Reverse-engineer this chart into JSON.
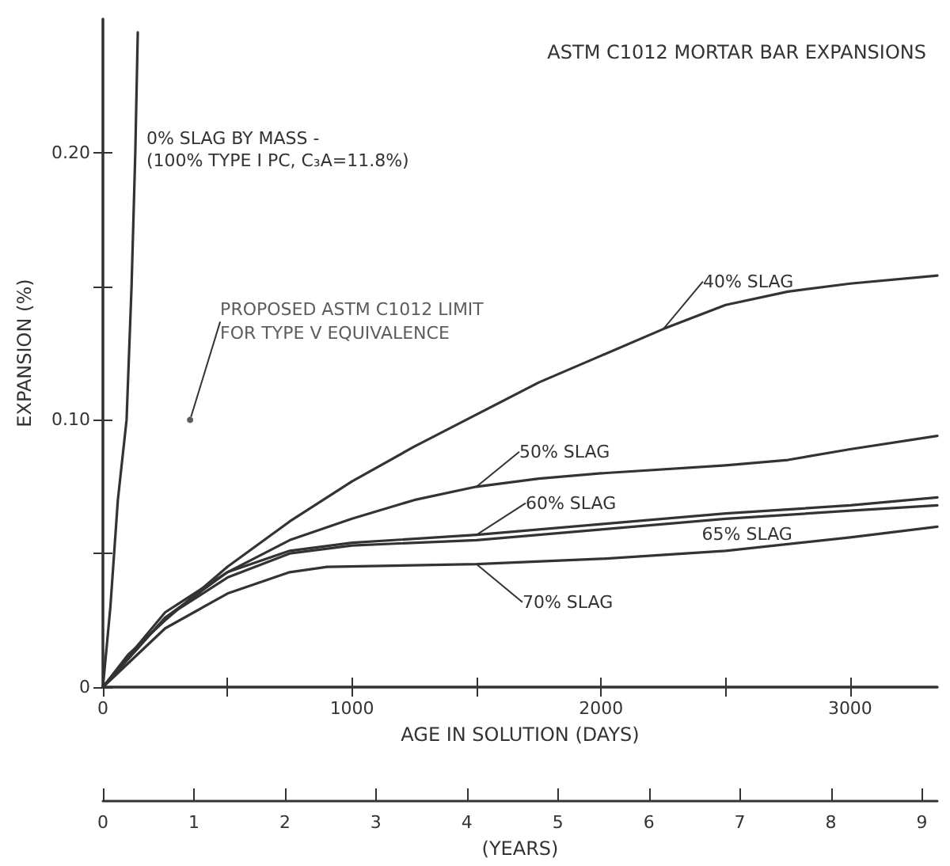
{
  "chart_data": {
    "type": "line",
    "title": "ASTM C1012 MORTAR BAR EXPANSIONS",
    "xlabel": "AGE IN SOLUTION (DAYS)",
    "ylabel": "EXPANSION (%)",
    "x2label": "(YEARS)",
    "xlim": [
      0,
      3350
    ],
    "xticks": [
      0,
      {
        "value": 500,
        "label": null
      },
      1000,
      {
        "value": 1500,
        "label": null
      },
      2000,
      {
        "value": 2500,
        "label": null
      },
      3000
    ],
    "ylim": [
      0,
      0.25
    ],
    "yticks": [
      0,
      {
        "value": 0.05,
        "label": null
      },
      {
        "value": 0.1,
        "label": "0.10"
      },
      {
        "value": 0.15,
        "label": null
      },
      {
        "value": 0.2,
        "label": "0.20"
      }
    ],
    "x2lim": [
      0,
      9.17
    ],
    "x2ticks": [
      0,
      1,
      2,
      3,
      4,
      5,
      6,
      7,
      8,
      9
    ],
    "grid": false,
    "legend": false,
    "marker": "none",
    "line_style": "solid",
    "annotations": [
      {
        "text": "PROPOSED ASTM C1012 LIMIT\nFOR TYPE V EQUIVALENCE",
        "x": 350,
        "y": 0.1
      }
    ],
    "series": [
      {
        "name": "0% SLAG BY MASS -\n(100% TYPE I PC, C₃A=11.8%)",
        "color": "#333333",
        "x": [
          0,
          30,
          60,
          95,
          115,
          130,
          140
        ],
        "values": [
          0,
          0.03,
          0.07,
          0.1,
          0.15,
          0.2,
          0.245
        ]
      },
      {
        "name": "40% SLAG",
        "color": "#333333",
        "x": [
          0,
          100,
          250,
          500,
          750,
          1000,
          1250,
          1500,
          1750,
          2000,
          2250,
          2500,
          2750,
          3000,
          3350
        ],
        "values": [
          0,
          0.012,
          0.025,
          0.045,
          0.062,
          0.077,
          0.09,
          0.102,
          0.114,
          0.124,
          0.134,
          0.143,
          0.148,
          0.151,
          0.154
        ]
      },
      {
        "name": "50% SLAG",
        "color": "#333333",
        "x": [
          0,
          250,
          500,
          750,
          1000,
          1250,
          1500,
          1750,
          2000,
          2500,
          2750,
          3000,
          3350
        ],
        "values": [
          0,
          0.026,
          0.043,
          0.055,
          0.063,
          0.07,
          0.075,
          0.078,
          0.08,
          0.083,
          0.085,
          0.089,
          0.094
        ]
      },
      {
        "name": "60% SLAG",
        "color": "#333333",
        "x": [
          0,
          250,
          500,
          750,
          1000,
          1500,
          2000,
          2500,
          3000,
          3350
        ],
        "values": [
          0,
          0.028,
          0.043,
          0.051,
          0.054,
          0.057,
          0.061,
          0.065,
          0.068,
          0.071
        ]
      },
      {
        "name": "65% SLAG",
        "color": "#333333",
        "x": [
          0,
          250,
          500,
          750,
          1000,
          1500,
          2000,
          2500,
          3000,
          3350
        ],
        "values": [
          0,
          0.026,
          0.041,
          0.05,
          0.053,
          0.055,
          0.059,
          0.063,
          0.066,
          0.068
        ]
      },
      {
        "name": "70% SLAG",
        "color": "#333333",
        "x": [
          0,
          250,
          500,
          750,
          900,
          1500,
          2000,
          2500,
          3000,
          3350
        ],
        "values": [
          0,
          0.022,
          0.035,
          0.043,
          0.045,
          0.046,
          0.048,
          0.051,
          0.056,
          0.06
        ]
      }
    ]
  }
}
